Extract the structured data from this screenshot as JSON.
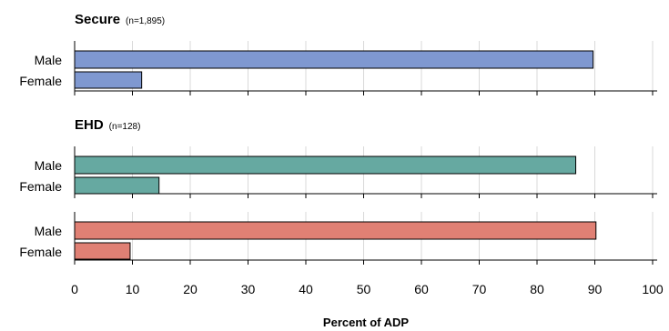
{
  "chart_data": {
    "type": "bar",
    "orientation": "horizontal",
    "categories": [
      "Male",
      "Female"
    ],
    "xlim": [
      0,
      100
    ],
    "xticks": [
      0,
      10,
      20,
      30,
      40,
      50,
      60,
      70,
      80,
      90,
      100
    ],
    "xlabel": "Percent of ADP",
    "grid": true,
    "panels": [
      {
        "title": "Secure",
        "n_label": "(n=1,895)",
        "color": "#7f98d0",
        "values": [
          89.7,
          11.6
        ]
      },
      {
        "title": "EHD",
        "n_label": "(n=128)",
        "color": "#66a9a1",
        "values": [
          86.7,
          14.6
        ]
      },
      {
        "title": "",
        "n_label": "",
        "color": "#e08074",
        "values": [
          90.2,
          9.6
        ]
      }
    ]
  }
}
